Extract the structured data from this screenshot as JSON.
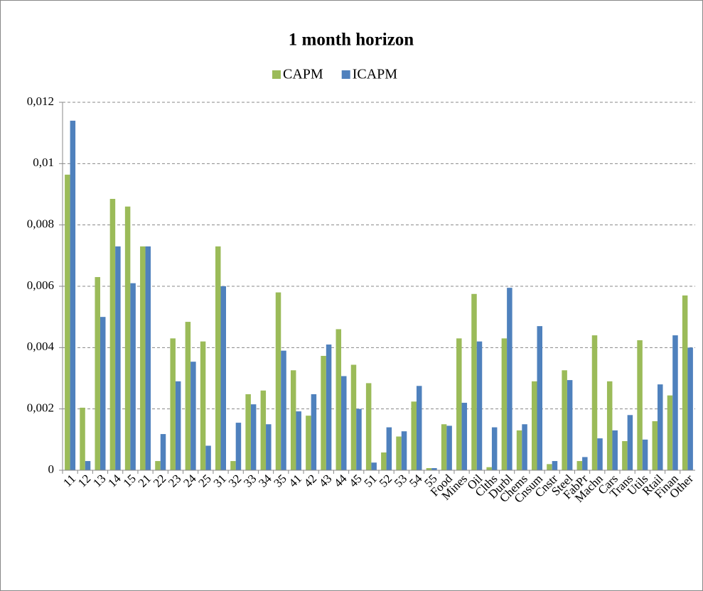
{
  "chart_data": {
    "type": "bar",
    "title": "1 month horizon",
    "categories": [
      "11",
      "12",
      "13",
      "14",
      "15",
      "21",
      "22",
      "23",
      "24",
      "25",
      "31",
      "32",
      "33",
      "34",
      "35",
      "41",
      "42",
      "43",
      "44",
      "45",
      "51",
      "52",
      "53",
      "54",
      "55",
      "Food",
      "Mines",
      "Oil",
      "Clths",
      "Durbl",
      "Chems",
      "Cnsum",
      "Cnstr",
      "Steel",
      "FabPr",
      "Machn",
      "Cars",
      "Trans",
      "Utils",
      "Rtail",
      "Finan",
      "Other"
    ],
    "series": [
      {
        "name": "CAPM",
        "color": "#9bbb59",
        "values": [
          0.00964,
          0.00204,
          0.0063,
          0.00885,
          0.0086,
          0.0073,
          0.0003,
          0.0043,
          0.00484,
          0.0042,
          0.0073,
          0.0003,
          0.00248,
          0.0026,
          0.0058,
          0.00326,
          0.00178,
          0.00373,
          0.0046,
          0.00344,
          0.00284,
          0.00058,
          0.0011,
          0.00224,
          7e-05,
          0.0015,
          0.0043,
          0.00575,
          0.0001,
          0.0043,
          0.0013,
          0.0029,
          0.0002,
          0.00326,
          0.0003,
          0.0044,
          0.0029,
          0.00095,
          0.00424,
          0.0016,
          0.00244,
          0.0057
        ]
      },
      {
        "name": "ICAPM",
        "color": "#4f81bd",
        "values": [
          0.0114,
          0.0003,
          0.005,
          0.0073,
          0.0061,
          0.0073,
          0.00118,
          0.0029,
          0.00354,
          0.0008,
          0.006,
          0.00155,
          0.00215,
          0.0015,
          0.0039,
          0.00192,
          0.00248,
          0.0041,
          0.00307,
          0.002,
          0.00025,
          0.0014,
          0.00127,
          0.00275,
          7e-05,
          0.00145,
          0.0022,
          0.0042,
          0.0014,
          0.00595,
          0.0015,
          0.0047,
          0.0003,
          0.00294,
          0.00043,
          0.00104,
          0.0013,
          0.0018,
          0.001,
          0.0028,
          0.0044,
          0.004
        ]
      }
    ],
    "ylim": [
      0,
      0.012
    ],
    "yticks": [
      0,
      {
        "value": 0.002,
        "label": "0,002"
      },
      {
        "value": 0.004,
        "label": "0,004"
      },
      {
        "value": 0.006,
        "label": "0,006"
      },
      {
        "value": 0.008,
        "label": "0,008"
      },
      {
        "value": 0.01,
        "label": "0,01"
      },
      {
        "value": 0.012,
        "label": "0,012"
      }
    ],
    "grid": true
  }
}
